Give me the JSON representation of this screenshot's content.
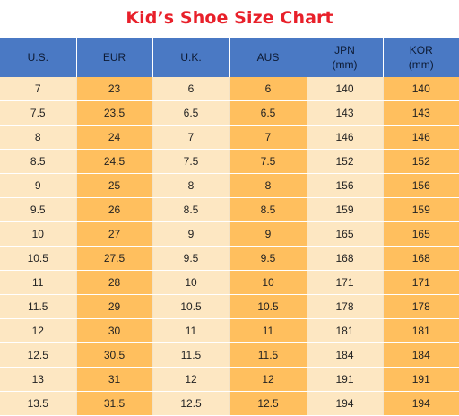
{
  "title": "Kid’s Shoe Size Chart",
  "colors": {
    "title": "#e8202a",
    "header_bg": "#4a79c4",
    "light_cell": "#fde7c2",
    "dark_cell": "#ffbf5e"
  },
  "columns": [
    {
      "lines": [
        "U.S."
      ]
    },
    {
      "lines": [
        "EUR"
      ]
    },
    {
      "lines": [
        "U.K."
      ]
    },
    {
      "lines": [
        "AUS"
      ]
    },
    {
      "lines": [
        "JPN",
        "(mm)"
      ]
    },
    {
      "lines": [
        "KOR",
        "(mm)"
      ]
    }
  ],
  "rows": [
    [
      "7",
      "23",
      "6",
      "6",
      "140",
      "140"
    ],
    [
      "7.5",
      "23.5",
      "6.5",
      "6.5",
      "143",
      "143"
    ],
    [
      "8",
      "24",
      "7",
      "7",
      "146",
      "146"
    ],
    [
      "8.5",
      "24.5",
      "7.5",
      "7.5",
      "152",
      "152"
    ],
    [
      "9",
      "25",
      "8",
      "8",
      "156",
      "156"
    ],
    [
      "9.5",
      "26",
      "8.5",
      "8.5",
      "159",
      "159"
    ],
    [
      "10",
      "27",
      "9",
      "9",
      "165",
      "165"
    ],
    [
      "10.5",
      "27.5",
      "9.5",
      "9.5",
      "168",
      "168"
    ],
    [
      "11",
      "28",
      "10",
      "10",
      "171",
      "171"
    ],
    [
      "11.5",
      "29",
      "10.5",
      "10.5",
      "178",
      "178"
    ],
    [
      "12",
      "30",
      "11",
      "11",
      "181",
      "181"
    ],
    [
      "12.5",
      "30.5",
      "11.5",
      "11.5",
      "184",
      "184"
    ],
    [
      "13",
      "31",
      "12",
      "12",
      "191",
      "191"
    ],
    [
      "13.5",
      "31.5",
      "12.5",
      "12.5",
      "194",
      "194"
    ]
  ]
}
